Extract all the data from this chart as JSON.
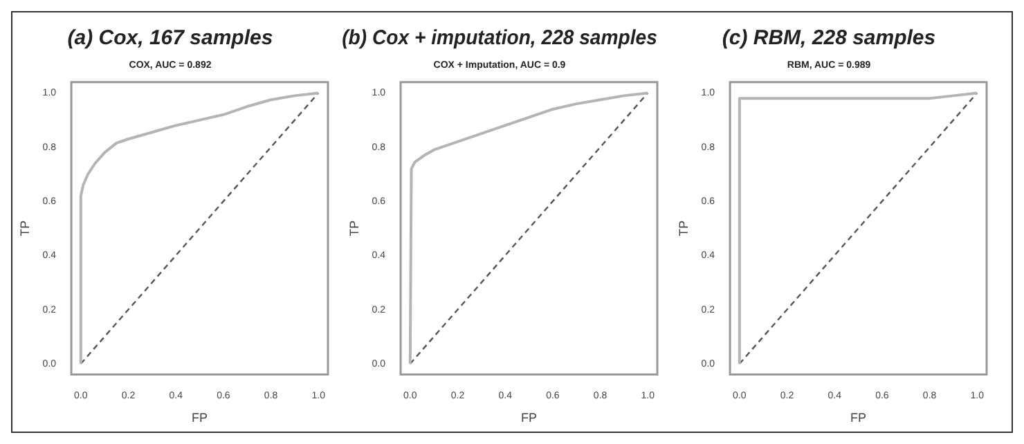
{
  "chart_data": [
    {
      "type": "line",
      "title": "(a) Cox, 167 samples",
      "subtitle": "COX, AUC = 0.892",
      "xlabel": "FP",
      "ylabel": "TP",
      "xlim": [
        -0.04,
        1.04
      ],
      "ylim": [
        -0.04,
        1.04
      ],
      "xticks": [
        {
          "value": 0,
          "label": "0.0"
        },
        {
          "value": 0.2,
          "label": "0.2"
        },
        {
          "value": 0.4,
          "label": "0.4"
        },
        {
          "value": 0.6,
          "label": "0.6"
        },
        {
          "value": 0.8,
          "label": "0.8"
        },
        {
          "value": 1,
          "label": "1.0"
        }
      ],
      "yticks": [
        {
          "value": 0,
          "label": "0.0"
        },
        {
          "value": 0.2,
          "label": "0.2"
        },
        {
          "value": 0.4,
          "label": "0.4"
        },
        {
          "value": 0.6,
          "label": "0.6"
        },
        {
          "value": 0.8,
          "label": "0.8"
        },
        {
          "value": 1,
          "label": "1.0"
        }
      ],
      "grid": false,
      "marker": "none",
      "series": [
        {
          "color": "#b4b4b4",
          "line_style": "solid",
          "x": [
            0,
            0,
            0.01,
            0.03,
            0.06,
            0.1,
            0.15,
            0.2,
            0.3,
            0.4,
            0.5,
            0.6,
            0.7,
            0.8,
            0.9,
            1
          ],
          "values": [
            0,
            0.62,
            0.66,
            0.7,
            0.74,
            0.78,
            0.815,
            0.83,
            0.855,
            0.88,
            0.9,
            0.92,
            0.95,
            0.975,
            0.99,
            1
          ]
        },
        {
          "color": "#555555",
          "line_style": "dashed",
          "x": [
            0,
            1
          ],
          "values": [
            0,
            1
          ]
        }
      ]
    },
    {
      "type": "line",
      "title": "(b) Cox + imputation, 228 samples",
      "subtitle": "COX + Imputation, AUC = 0.9",
      "xlabel": "FP",
      "ylabel": "TP",
      "xlim": [
        -0.04,
        1.04
      ],
      "ylim": [
        -0.04,
        1.04
      ],
      "xticks": [
        {
          "value": 0,
          "label": "0.0"
        },
        {
          "value": 0.2,
          "label": "0.2"
        },
        {
          "value": 0.4,
          "label": "0.4"
        },
        {
          "value": 0.6,
          "label": "0.6"
        },
        {
          "value": 0.8,
          "label": "0.8"
        },
        {
          "value": 1,
          "label": "1.0"
        }
      ],
      "yticks": [
        {
          "value": 0,
          "label": "0.0"
        },
        {
          "value": 0.2,
          "label": "0.2"
        },
        {
          "value": 0.4,
          "label": "0.4"
        },
        {
          "value": 0.6,
          "label": "0.6"
        },
        {
          "value": 0.8,
          "label": "0.8"
        },
        {
          "value": 1,
          "label": "1.0"
        }
      ],
      "grid": false,
      "marker": "none",
      "series": [
        {
          "color": "#b4b4b4",
          "line_style": "solid",
          "x": [
            0,
            0.005,
            0.02,
            0.06,
            0.1,
            0.2,
            0.3,
            0.4,
            0.5,
            0.6,
            0.7,
            0.8,
            0.9,
            1
          ],
          "values": [
            0,
            0.72,
            0.745,
            0.77,
            0.79,
            0.82,
            0.85,
            0.88,
            0.91,
            0.94,
            0.96,
            0.975,
            0.99,
            1
          ]
        },
        {
          "color": "#555555",
          "line_style": "dashed",
          "x": [
            0,
            1
          ],
          "values": [
            0,
            1
          ]
        }
      ]
    },
    {
      "type": "line",
      "title": "(c) RBM, 228 samples",
      "subtitle": "RBM, AUC = 0.989",
      "xlabel": "FP",
      "ylabel": "TP",
      "xlim": [
        -0.04,
        1.04
      ],
      "ylim": [
        -0.04,
        1.04
      ],
      "xticks": [
        {
          "value": 0,
          "label": "0.0"
        },
        {
          "value": 0.2,
          "label": "0.2"
        },
        {
          "value": 0.4,
          "label": "0.4"
        },
        {
          "value": 0.6,
          "label": "0.6"
        },
        {
          "value": 0.8,
          "label": "0.8"
        },
        {
          "value": 1,
          "label": "1.0"
        }
      ],
      "yticks": [
        {
          "value": 0,
          "label": "0.0"
        },
        {
          "value": 0.2,
          "label": "0.2"
        },
        {
          "value": 0.4,
          "label": "0.4"
        },
        {
          "value": 0.6,
          "label": "0.6"
        },
        {
          "value": 0.8,
          "label": "0.8"
        },
        {
          "value": 1,
          "label": "1.0"
        }
      ],
      "grid": false,
      "marker": "none",
      "series": [
        {
          "color": "#b4b4b4",
          "line_style": "solid",
          "x": [
            0,
            0,
            0.8,
            0.9,
            1
          ],
          "values": [
            0,
            0.98,
            0.98,
            0.99,
            1
          ]
        },
        {
          "color": "#555555",
          "line_style": "dashed",
          "x": [
            0,
            1
          ],
          "values": [
            0,
            1
          ]
        }
      ]
    }
  ]
}
